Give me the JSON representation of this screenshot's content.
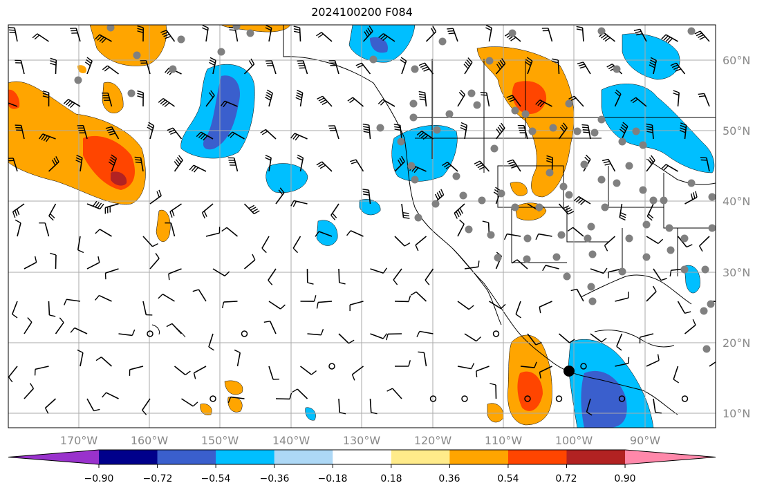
{
  "title": "2024100200 F084",
  "map": {
    "lon_ticks": [
      "170°W",
      "160°W",
      "150°W",
      "140°W",
      "130°W",
      "120°W",
      "110°W",
      "100°W",
      "90°W"
    ],
    "lat_ticks": [
      "60°N",
      "50°N",
      "40°N",
      "30°N",
      "20°N",
      "10°N"
    ],
    "grid": true
  },
  "colorbar": {
    "labels": [
      "−0.90",
      "−0.72",
      "−0.54",
      "−0.36",
      "−0.18",
      "0.18",
      "0.36",
      "0.54",
      "0.72",
      "0.90"
    ],
    "colors": [
      "#9932CC",
      "#00008B",
      "#3A5FCD",
      "#00BFFF",
      "#ADD8F6",
      "#FFFFFF",
      "#FFEB8A",
      "#FFA500",
      "#FF4500",
      "#B22222",
      "#FF88AA"
    ],
    "extend": "both"
  },
  "colors": {
    "orange": "#FFA500",
    "red": "#FF4500",
    "darkred": "#B22222",
    "skyblue": "#00BFFF",
    "blue": "#3A5FCD",
    "station": "#808080"
  }
}
